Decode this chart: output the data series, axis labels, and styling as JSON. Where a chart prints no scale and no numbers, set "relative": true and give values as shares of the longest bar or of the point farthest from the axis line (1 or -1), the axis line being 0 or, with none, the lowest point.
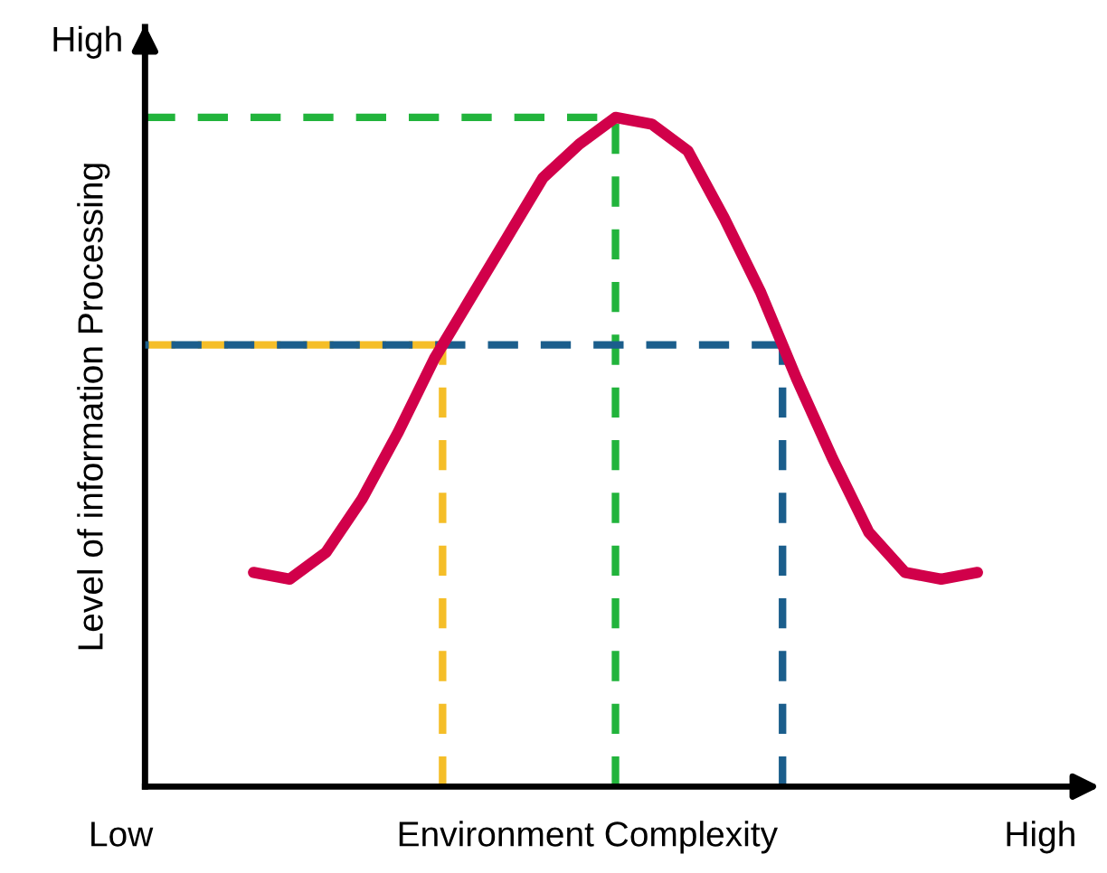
{
  "chart_data": {
    "type": "line",
    "relative": true,
    "xlabel": "Environment Complexity",
    "ylabel": "Level of information Processing",
    "annotations": [
      "High",
      "Low",
      "High"
    ],
    "categories": [
      null,
      null,
      null,
      null,
      null,
      null,
      null,
      null,
      null,
      null,
      null,
      null,
      null,
      null,
      null,
      null,
      null,
      null,
      null,
      null,
      null
    ],
    "series": [
      {
        "color": "#d1004a",
        "values": [
          0.32,
          0.31,
          0.35,
          0.43,
          0.53,
          0.64,
          0.73,
          0.82,
          0.91,
          0.96,
          1.0,
          0.99,
          0.95,
          0.85,
          0.74,
          0.61,
          0.49,
          0.38,
          0.32,
          0.31,
          0.32
        ]
      }
    ],
    "ref_lines": [
      {
        "axis": "y",
        "value": 1.0,
        "color": "#22b43c",
        "line_style": "dashed"
      },
      {
        "axis": "y",
        "value": 0.66,
        "color": "#f5be28",
        "line_style": "dashed"
      },
      {
        "axis": "y",
        "value": 0.66,
        "color": "#1b5e8c",
        "line_style": "dashed"
      }
    ],
    "legend": false,
    "marker": "none",
    "line_style": "solid"
  }
}
